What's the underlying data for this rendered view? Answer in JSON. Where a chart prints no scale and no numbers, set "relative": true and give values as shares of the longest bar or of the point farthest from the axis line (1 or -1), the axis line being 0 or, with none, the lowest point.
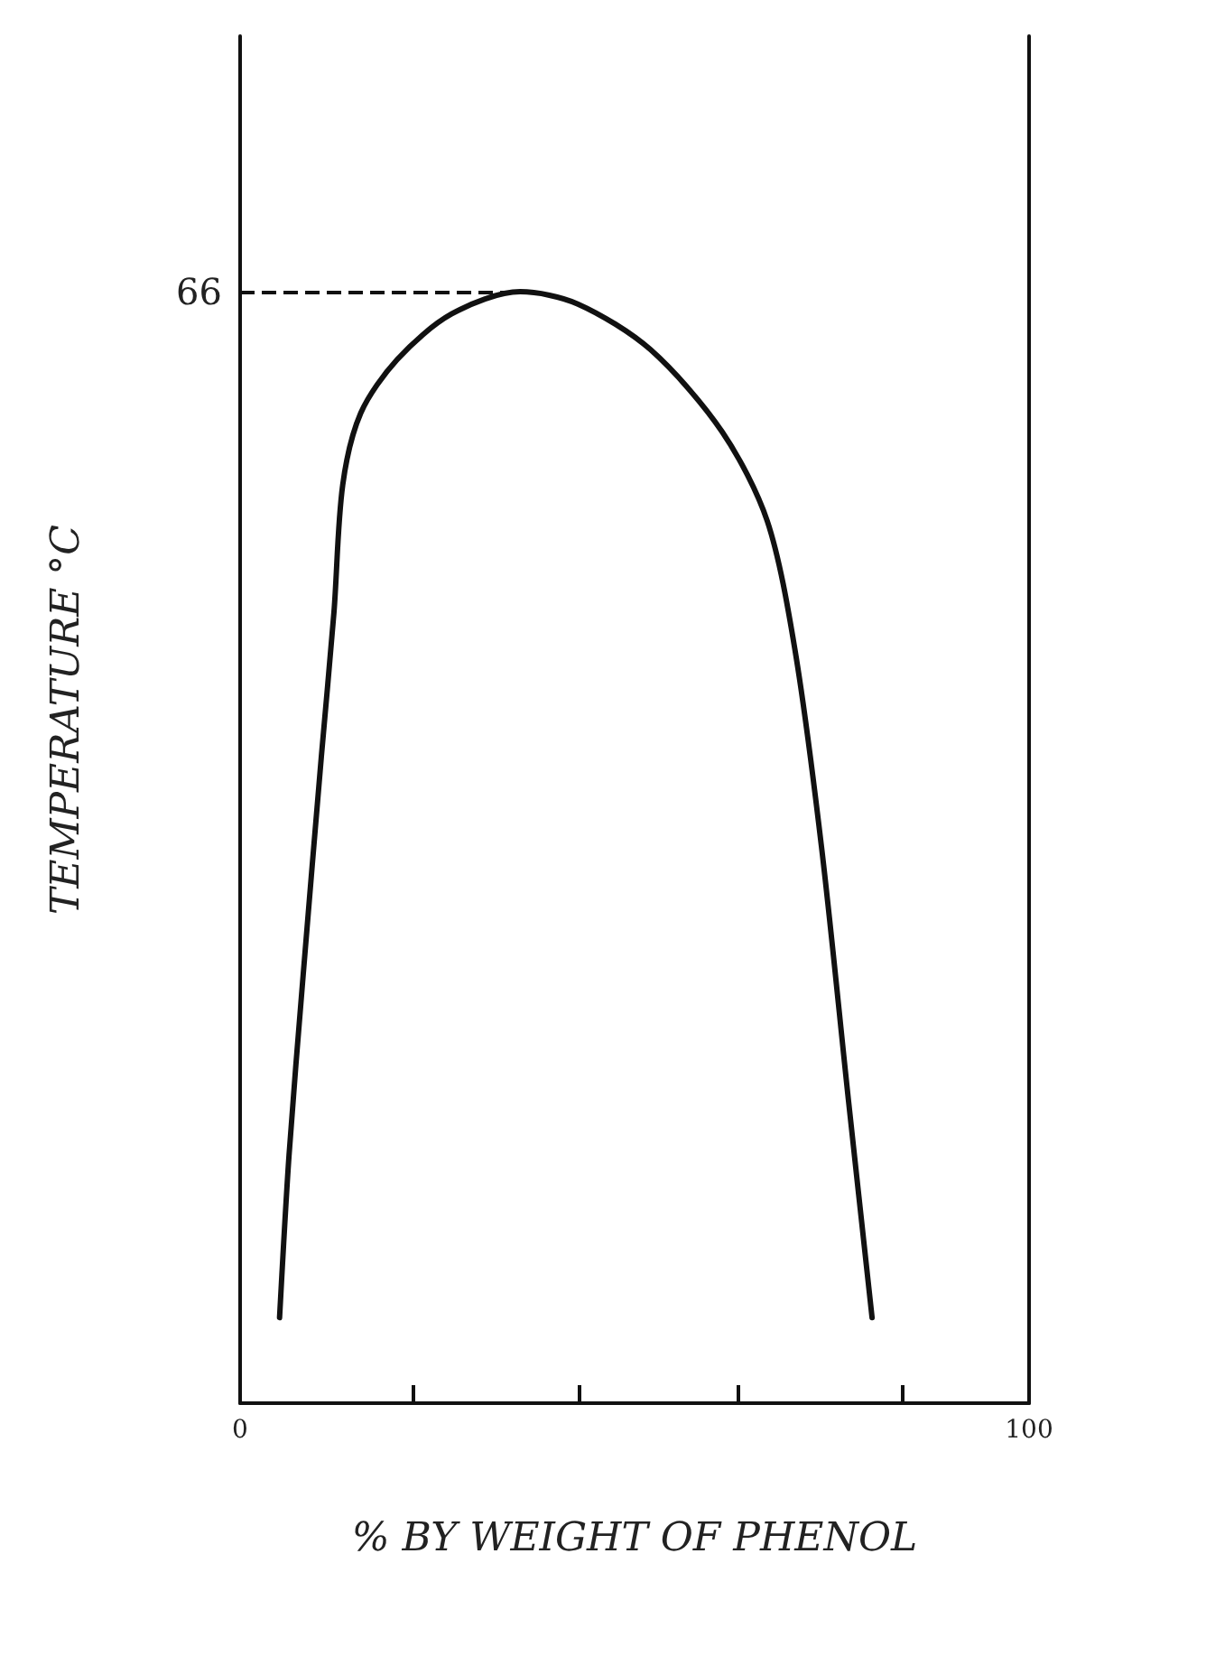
{
  "chart_data": {
    "type": "line",
    "xlabel": "% BY WEIGHT OF PHENOL",
    "ylabel": "TEMPERATURE °C",
    "relative": true,
    "x": [
      5.0,
      6.2,
      8.0,
      10.3,
      11.9,
      13.0,
      15.3,
      19.9,
      26.8,
      35.5,
      42.8,
      52.0,
      61.1,
      66.8,
      70.3,
      73.7,
      77.1,
      80.1
    ],
    "series": [
      {
        "color": "#111111",
        "values": [
          0.077,
          0.223,
          0.386,
          0.582,
          0.712,
          0.826,
          0.891,
          0.939,
          0.98,
          1,
          0.989,
          0.948,
          0.874,
          0.794,
          0.679,
          0.5,
          0.273,
          0.077
        ]
      }
    ],
    "xlim": [
      0,
      100
    ],
    "xticks": [
      0,
      {
        "value": 22,
        "label": null
      },
      {
        "value": 43,
        "label": null
      },
      {
        "value": 63,
        "label": null
      },
      {
        "value": 84,
        "label": null
      },
      100
    ],
    "annotations": [
      "66"
    ],
    "ref_lines": [
      {
        "axis": "y",
        "value": 1,
        "line_style": "dashed",
        "color": "#111111"
      }
    ],
    "grid": false,
    "marker": "none",
    "line_style": "solid"
  }
}
